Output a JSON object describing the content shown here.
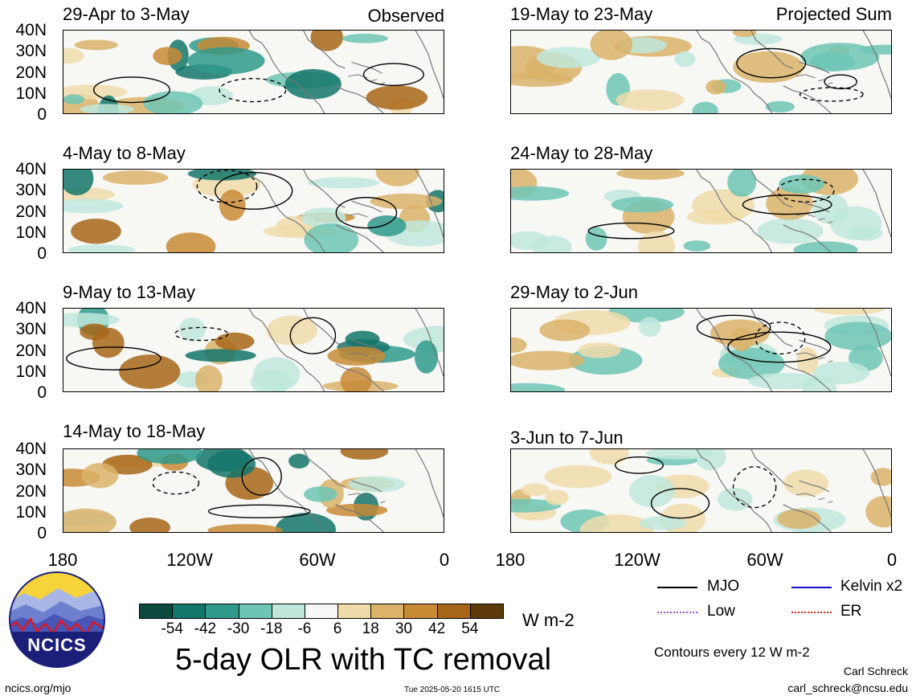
{
  "labels": {
    "observed": "Observed",
    "projected": "Projected Sum",
    "main_title": "5-day OLR with TC removal",
    "units": "W m-2",
    "contours_note": "Contours every 12 W m-2",
    "author": "Carl Schreck",
    "email": "carl_schreck@ncsu.edu",
    "website": "ncics.org/mjo",
    "timestamp": "Tue 2025-05-20 1615 UTC",
    "logo_text": "NCICS"
  },
  "panels": {
    "left": [
      {
        "title": "29-Apr to 3-May"
      },
      {
        "title": "4-May to 8-May"
      },
      {
        "title": "9-May to 13-May"
      },
      {
        "title": "14-May to 18-May"
      }
    ],
    "right": [
      {
        "title": "19-May to 23-May"
      },
      {
        "title": "24-May to 28-May"
      },
      {
        "title": "29-May to 2-Jun"
      },
      {
        "title": "3-Jun to 7-Jun"
      }
    ]
  },
  "axes": {
    "y_ticks": [
      "40N",
      "30N",
      "20N",
      "10N",
      "0"
    ],
    "x_ticks": [
      "180",
      "120W",
      "60W",
      "0"
    ]
  },
  "colorbar": {
    "labels": [
      "-54",
      "-42",
      "-30",
      "-18",
      "-6",
      "6",
      "18",
      "30",
      "42",
      "54"
    ],
    "colors": [
      "#0b4a3c",
      "#13766a",
      "#2f9a8c",
      "#6fc5b5",
      "#bfe7dc",
      "#f7f7f7",
      "#f0dcaa",
      "#dbb36a",
      "#c88a35",
      "#a86618",
      "#5e3a0a"
    ]
  },
  "legend": [
    {
      "label": "MJO",
      "color": "#000000",
      "style": "solid"
    },
    {
      "label": "Kelvin x2",
      "color": "#1010c8",
      "style": "solid"
    },
    {
      "label": "Low",
      "color": "#9a50d0",
      "style": "dotted"
    },
    {
      "label": "ER",
      "color": "#e02020",
      "style": "dotted"
    }
  ]
}
